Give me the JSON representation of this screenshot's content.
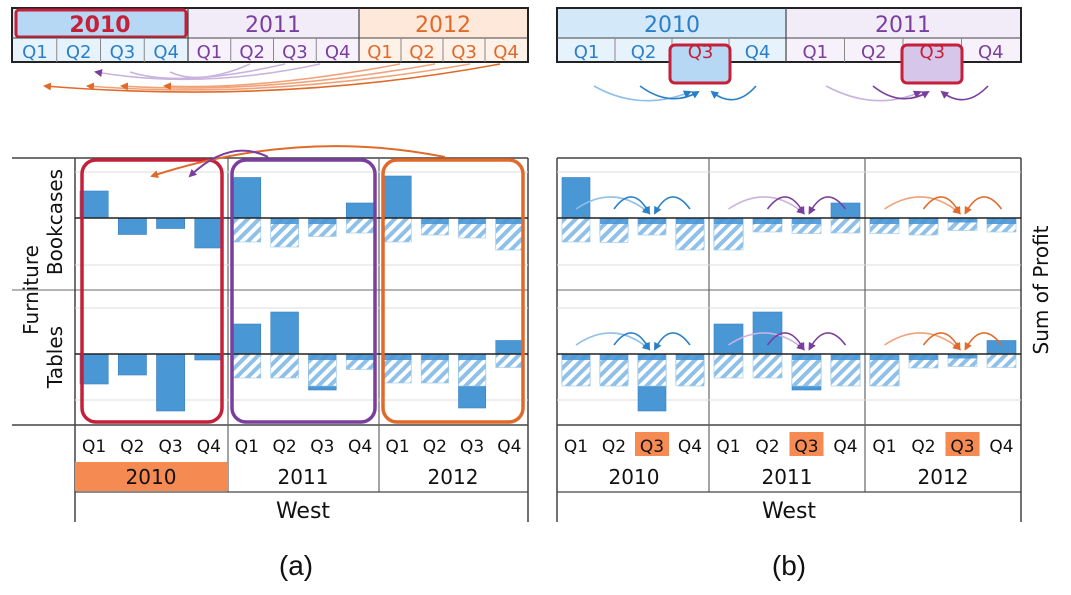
{
  "panel_a": {
    "caption": "(a)",
    "years": [
      "2010",
      "2011",
      "2012"
    ],
    "quarters": [
      "Q1",
      "Q2",
      "Q3",
      "Q4"
    ],
    "category": "Furniture",
    "subcategories": [
      "Bookcases",
      "Tables"
    ],
    "region": "West",
    "selected_year": "2010",
    "chart_values": {
      "Bookcases": [
        [
          0.9,
          -0.55,
          -0.35,
          -1.0
        ],
        [
          1.35,
          -0.7,
          -0.35,
          0.5
        ],
        [
          1.4,
          -0.3,
          -0.4,
          -1.0
        ]
      ],
      "Tables": [
        [
          -1.0,
          -0.7,
          -1.9,
          -0.2
        ],
        [
          1.0,
          1.4,
          -1.2,
          -0.25
        ],
        [
          -0.7,
          -0.7,
          -1.8,
          0.45
        ]
      ]
    }
  },
  "panel_b": {
    "caption": "(b)",
    "years": [
      "2010",
      "2011"
    ],
    "quarters": [
      "Q1",
      "Q2",
      "Q3",
      "Q4"
    ],
    "axis_years": [
      "2010",
      "2011",
      "2012"
    ],
    "selected_quarter": "Q3",
    "region": "West",
    "measure": "Sum of Profit",
    "chart_values": {
      "Bookcases": [
        [
          1.35,
          -0.55,
          -0.3,
          -1.0
        ],
        [
          -0.9,
          -0.2,
          -0.25,
          0.5
        ],
        [
          -0.25,
          -0.3,
          -0.15,
          -0.2
        ]
      ],
      "Tables": [
        [
          -1.0,
          -1.0,
          -1.9,
          -1.0
        ],
        [
          1.0,
          1.4,
          -1.2,
          -0.9
        ],
        [
          -1.05,
          -0.2,
          -0.15,
          0.45
        ]
      ]
    }
  },
  "colors": {
    "year_2010": "#2a80c8",
    "year_2011": "#7a3f9e",
    "year_2012": "#e06a2a",
    "highlight": "#c4203a",
    "bar": "#4a97d6",
    "orange_fill": "#f58a52"
  }
}
